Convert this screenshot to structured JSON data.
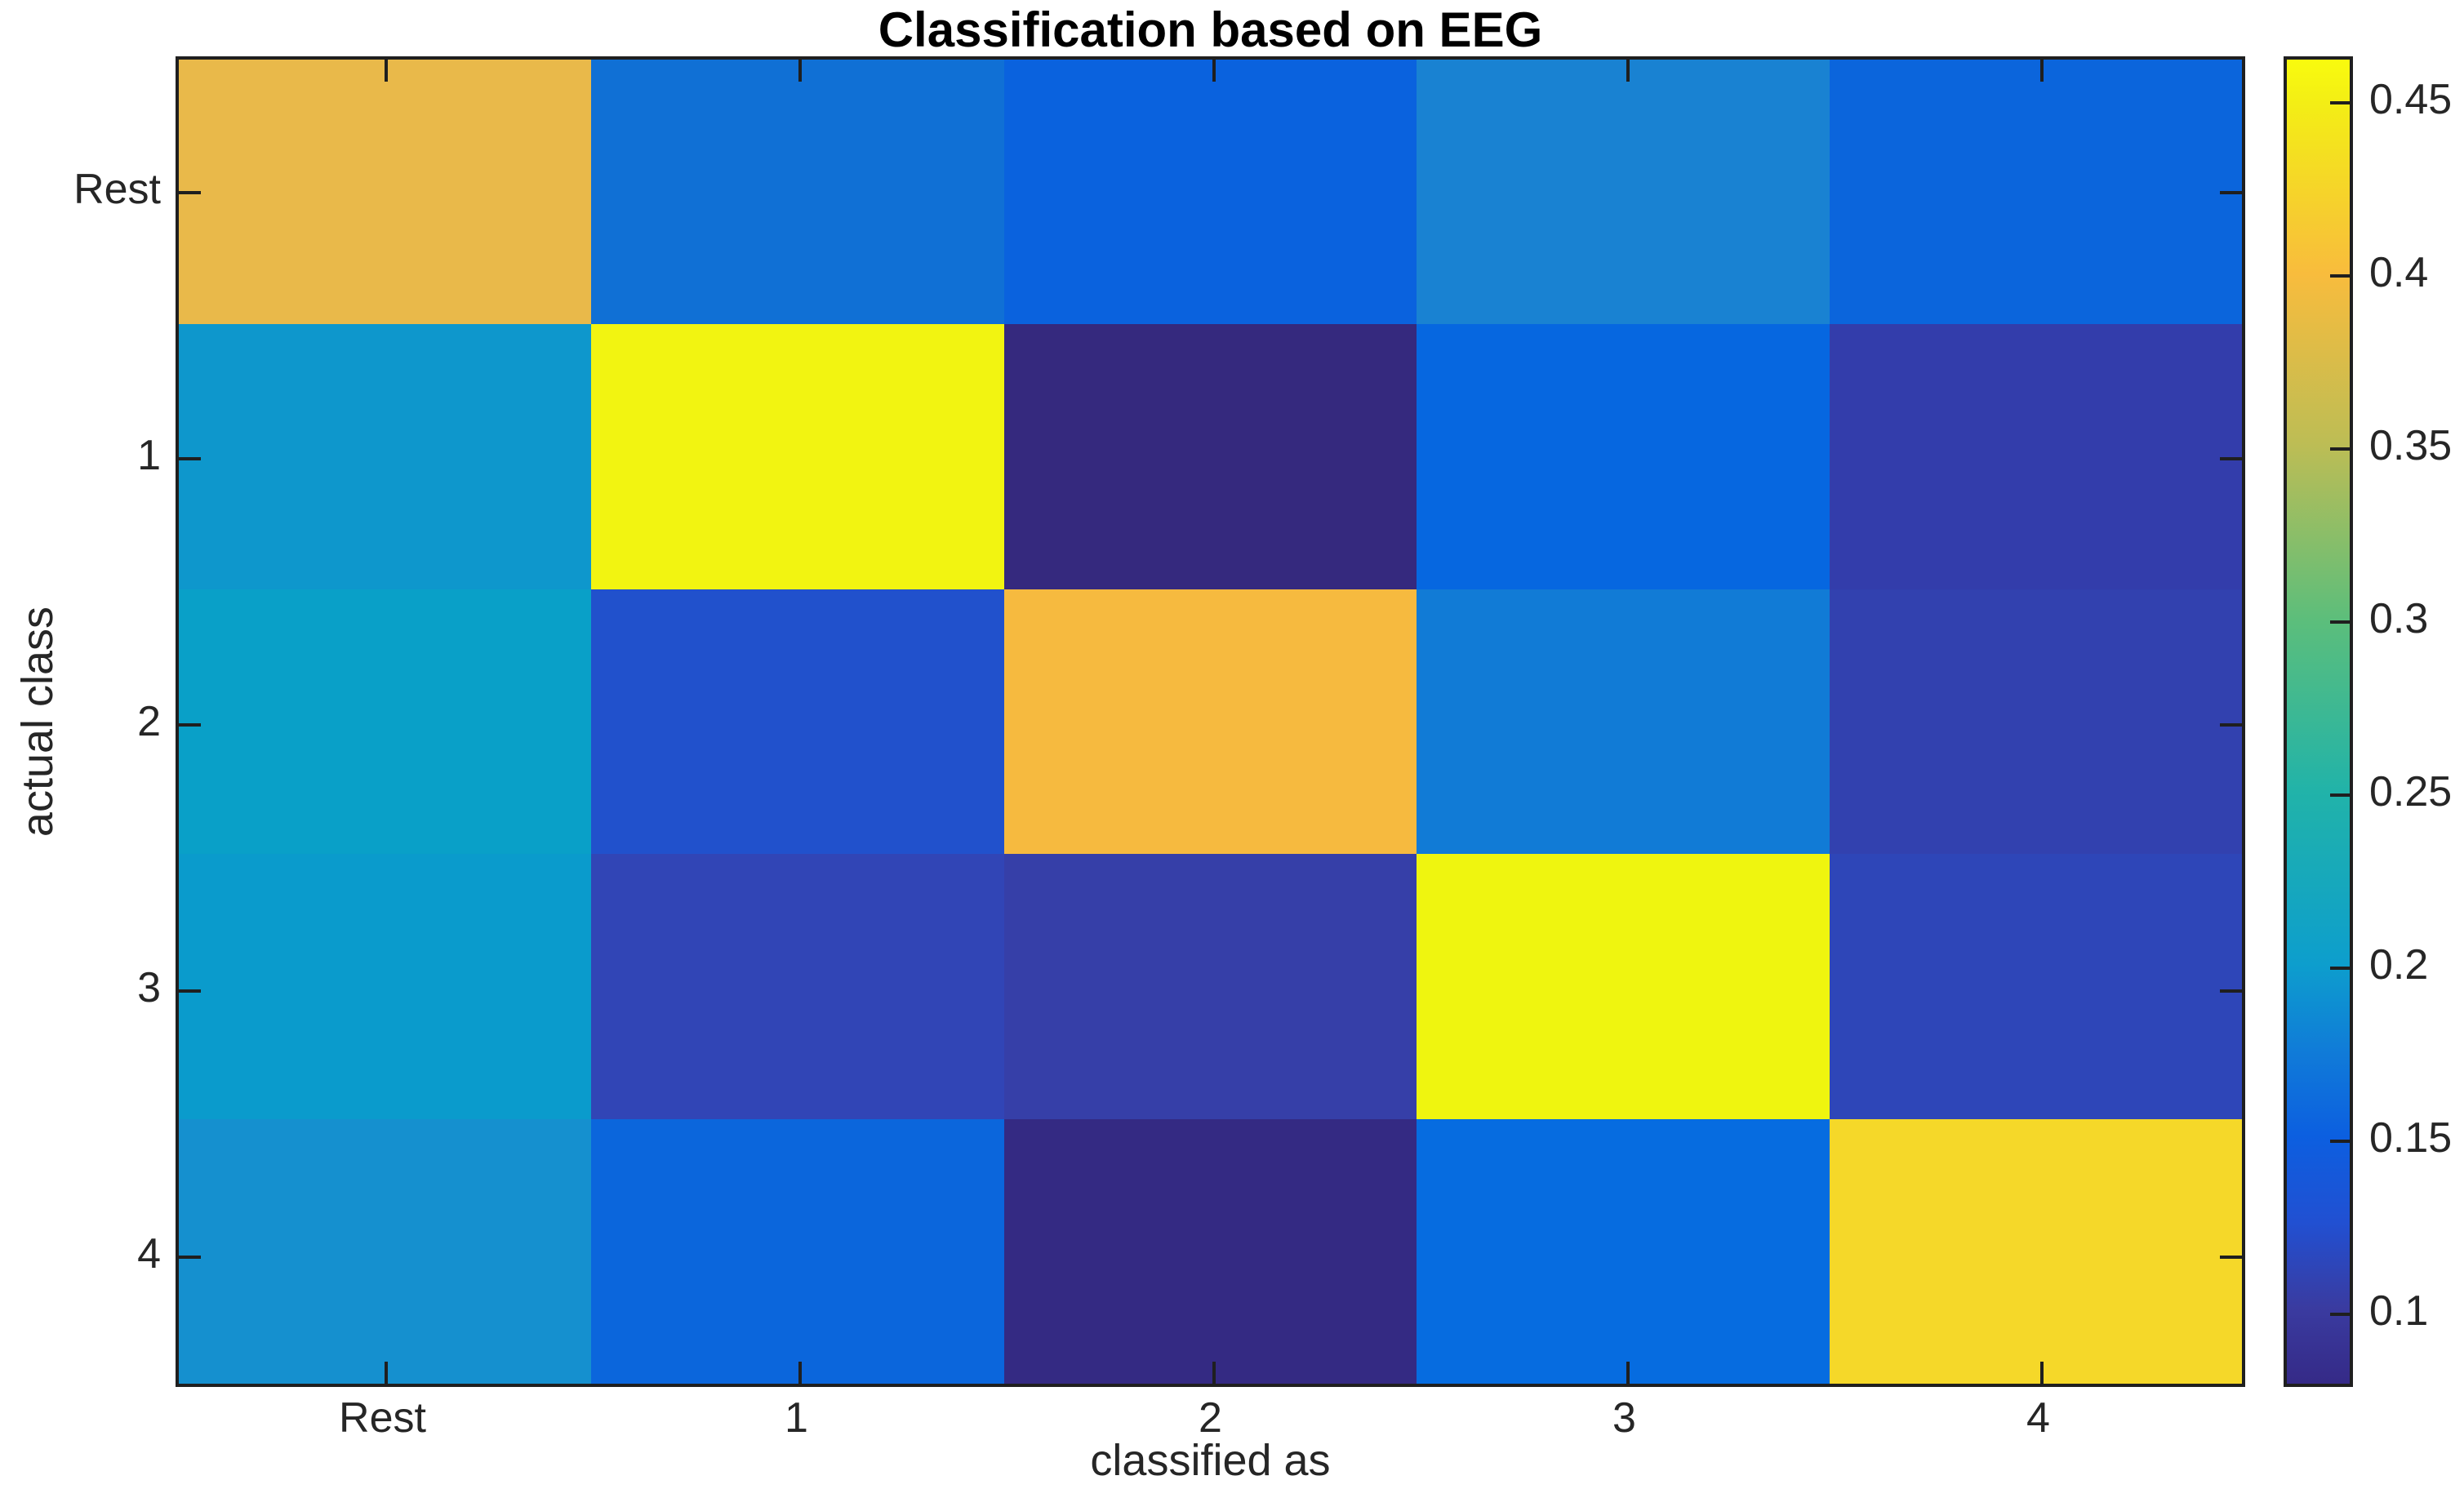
{
  "figure": {
    "background": "#ffffff",
    "axis_color": "#1f1f1f",
    "text_color": "#262626"
  },
  "chart_data": {
    "type": "heatmap",
    "title": "Classification based on EEG",
    "xlabel": "classified as",
    "ylabel": "actual class",
    "x_categories": [
      "Rest",
      "1",
      "2",
      "3",
      "4"
    ],
    "y_categories": [
      "Rest",
      "1",
      "2",
      "3",
      "4"
    ],
    "values": [
      [
        0.4,
        0.165,
        0.15,
        0.18,
        0.15
      ],
      [
        0.2,
        0.46,
        0.08,
        0.15,
        0.105
      ],
      [
        0.21,
        0.13,
        0.405,
        0.175,
        0.11
      ],
      [
        0.2,
        0.115,
        0.105,
        0.455,
        0.12
      ],
      [
        0.19,
        0.15,
        0.085,
        0.155,
        0.43
      ]
    ],
    "cell_colors": [
      [
        "#e9b94a",
        "#1070d5",
        "#0a62de",
        "#1982d2",
        "#0b65dc"
      ],
      [
        "#0e97cc",
        "#f2f411",
        "#35297e",
        "#0667e0",
        "#333dab"
      ],
      [
        "#09a0c8",
        "#2151cc",
        "#f6ba3f",
        "#117bd6",
        "#3241af"
      ],
      [
        "#0a9bcc",
        "#3145b6",
        "#363fa8",
        "#eff50f",
        "#2e46b8"
      ],
      [
        "#1590cf",
        "#0b66dc",
        "#342a83",
        "#066ce0",
        "#f5d829"
      ]
    ],
    "colormap": "parula",
    "grid": false,
    "legend": "none",
    "colorbar": {
      "position": "right",
      "vmin": 0.078,
      "vmax": 0.4625,
      "tick_labels": [
        "0.45",
        "0.4",
        "0.35",
        "0.3",
        "0.25",
        "0.2",
        "0.15",
        "0.1"
      ],
      "tick_values": [
        0.45,
        0.4,
        0.35,
        0.3,
        0.25,
        0.2,
        0.15,
        0.1
      ],
      "gradient_stops": [
        {
          "pos": 0.0,
          "color": "#352a87"
        },
        {
          "pos": 0.057,
          "color": "#3a3ba0"
        },
        {
          "pos": 0.122,
          "color": "#2150d2"
        },
        {
          "pos": 0.187,
          "color": "#0c5fe0"
        },
        {
          "pos": 0.25,
          "color": "#107bd8"
        },
        {
          "pos": 0.317,
          "color": "#0d9ecd"
        },
        {
          "pos": 0.447,
          "color": "#21b3a9"
        },
        {
          "pos": 0.577,
          "color": "#5cbe7b"
        },
        {
          "pos": 0.708,
          "color": "#bcbd55"
        },
        {
          "pos": 0.838,
          "color": "#f8bc3d"
        },
        {
          "pos": 0.967,
          "color": "#f3ee15"
        },
        {
          "pos": 1.0,
          "color": "#f9fb0e"
        }
      ]
    }
  }
}
